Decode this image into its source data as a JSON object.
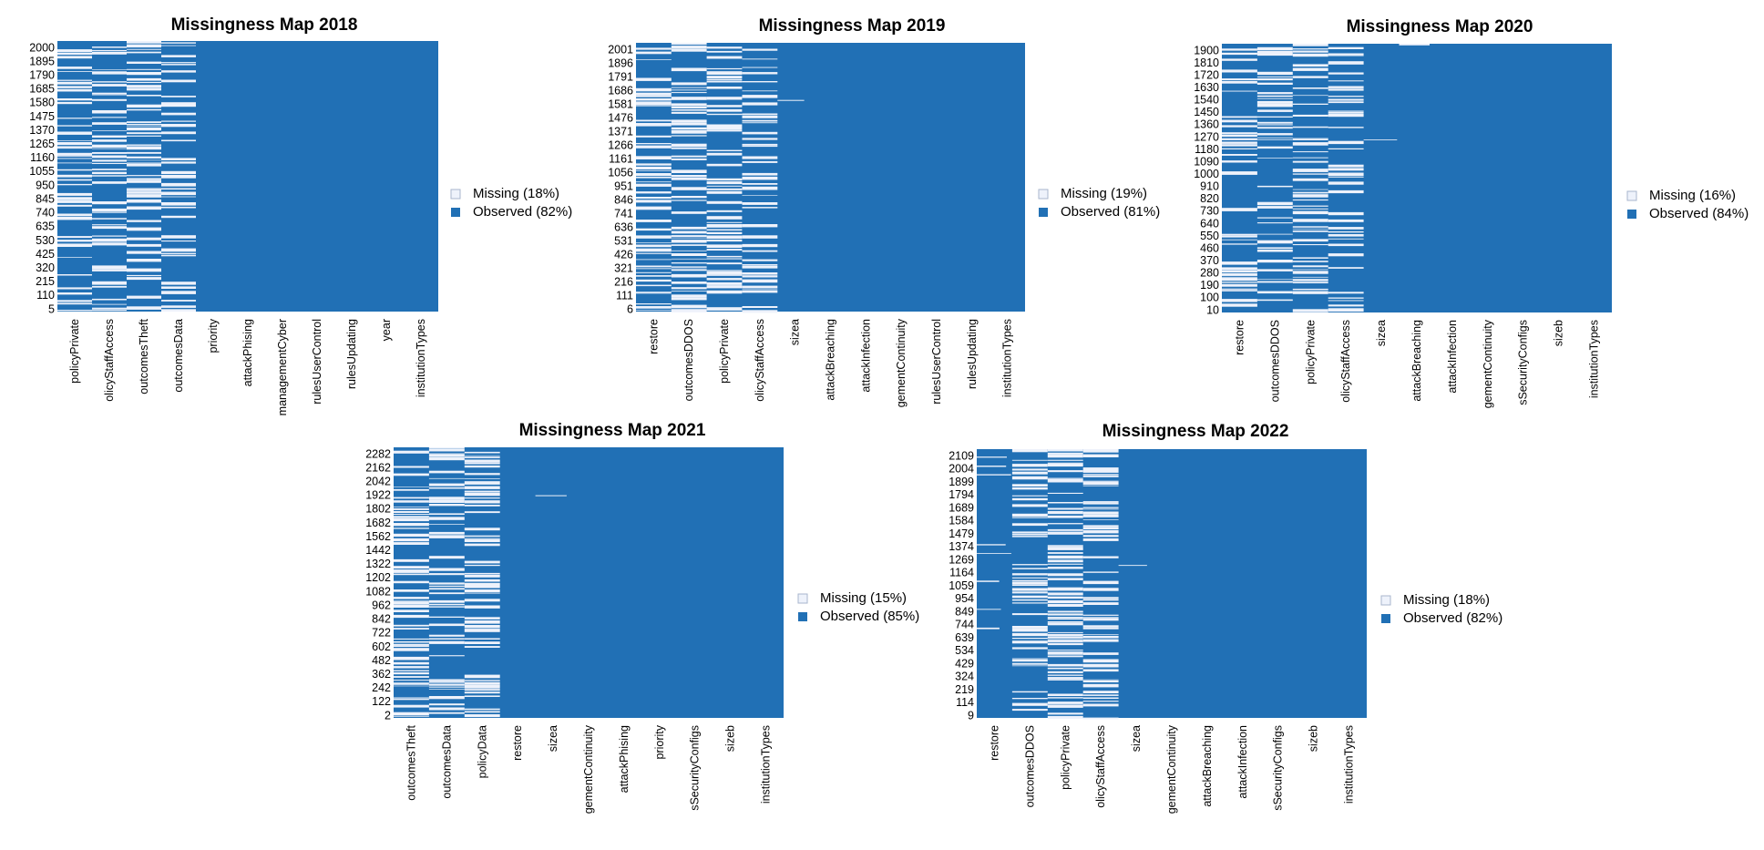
{
  "colors": {
    "missing": "#eef2fb",
    "observed": "#2170b5",
    "missing_border": "#a8b6cc"
  },
  "chart_data": [
    {
      "type": "heatmap",
      "title": "Missingness Map",
      "year": "2018",
      "legend": {
        "placement": "right",
        "missing": "Missing (18%)",
        "observed": "Observed (82%)"
      },
      "ytick_labels": [
        "2000",
        "1895",
        "1790",
        "1685",
        "1580",
        "1475",
        "1370",
        "1265",
        "1160",
        "1055",
        "950",
        "845",
        "740",
        "635",
        "530",
        "425",
        "320",
        "215",
        "110",
        "5"
      ],
      "columns": [
        {
          "name": "policyPrivate",
          "missing_pct": 40
        },
        {
          "name": "policyStaffAccess",
          "missing_pct": 45
        },
        {
          "name": "outcomesTheft",
          "missing_pct": 45
        },
        {
          "name": "outcomesData",
          "missing_pct": 35
        },
        {
          "name": "priority",
          "missing_pct": 2
        },
        {
          "name": "attackPhising",
          "missing_pct": 2
        },
        {
          "name": "managementCyber",
          "missing_pct": 1
        },
        {
          "name": "rulesUserControl",
          "missing_pct": 0
        },
        {
          "name": "rulesUpdating",
          "missing_pct": 0
        },
        {
          "name": "year",
          "missing_pct": 0
        },
        {
          "name": "institutionTypes",
          "missing_pct": 0
        }
      ]
    },
    {
      "type": "heatmap",
      "title": "Missingness Map",
      "year": "2019",
      "legend": {
        "placement": "right",
        "missing": "Missing (19%)",
        "observed": "Observed (81%)"
      },
      "ytick_labels": [
        "2001",
        "1896",
        "1791",
        "1686",
        "1581",
        "1476",
        "1371",
        "1266",
        "1161",
        "1056",
        "951",
        "846",
        "741",
        "636",
        "531",
        "426",
        "321",
        "216",
        "111",
        "6"
      ],
      "columns": [
        {
          "name": "restore",
          "missing_pct": 48
        },
        {
          "name": "outcomesDDOS",
          "missing_pct": 42
        },
        {
          "name": "policyPrivate",
          "missing_pct": 45
        },
        {
          "name": "policyStaffAccess",
          "missing_pct": 38
        },
        {
          "name": "sizea",
          "missing_pct": 4
        },
        {
          "name": "attackBreaching",
          "missing_pct": 2
        },
        {
          "name": "attackInfection",
          "missing_pct": 1
        },
        {
          "name": "managementContinuity",
          "missing_pct": 1
        },
        {
          "name": "rulesUserControl",
          "missing_pct": 1
        },
        {
          "name": "rulesUpdating",
          "missing_pct": 0
        },
        {
          "name": "institutionTypes",
          "missing_pct": 0
        }
      ]
    },
    {
      "type": "heatmap",
      "title": "Missingness Map",
      "year": "2020",
      "legend": {
        "placement": "right",
        "missing": "Missing (16%)",
        "observed": "Observed (84%)"
      },
      "ytick_labels": [
        "1900",
        "1810",
        "1720",
        "1630",
        "1540",
        "1450",
        "1360",
        "1270",
        "1180",
        "1090",
        "1000",
        "910",
        "820",
        "730",
        "640",
        "550",
        "460",
        "370",
        "280",
        "190",
        "100",
        "10"
      ],
      "columns": [
        {
          "name": "restore",
          "missing_pct": 38
        },
        {
          "name": "outcomesDDOS",
          "missing_pct": 40
        },
        {
          "name": "policyPrivate",
          "missing_pct": 42
        },
        {
          "name": "policyStaffAccess",
          "missing_pct": 36
        },
        {
          "name": "sizea",
          "missing_pct": 8
        },
        {
          "name": "attackBreaching",
          "missing_pct": 2
        },
        {
          "name": "attackInfection",
          "missing_pct": 1
        },
        {
          "name": "managementContinuity",
          "missing_pct": 1
        },
        {
          "name": "rulesSecurityConfigs",
          "missing_pct": 1
        },
        {
          "name": "sizeb",
          "missing_pct": 1
        },
        {
          "name": "institutionTypes",
          "missing_pct": 0
        }
      ]
    },
    {
      "type": "heatmap",
      "title": "Missingness Map",
      "year": "2021",
      "legend": {
        "placement": "right",
        "missing": "Missing (15%)",
        "observed": "Observed (85%)"
      },
      "ytick_labels": [
        "2282",
        "2162",
        "2042",
        "1922",
        "1802",
        "1682",
        "1562",
        "1442",
        "1322",
        "1202",
        "1082",
        "962",
        "842",
        "722",
        "602",
        "482",
        "362",
        "242",
        "122",
        "2"
      ],
      "columns": [
        {
          "name": "outcomesTheft",
          "missing_pct": 40
        },
        {
          "name": "outcomesData",
          "missing_pct": 40
        },
        {
          "name": "policyData",
          "missing_pct": 50
        },
        {
          "name": "restore",
          "missing_pct": 4
        },
        {
          "name": "sizea",
          "missing_pct": 3
        },
        {
          "name": "managementContinuity",
          "missing_pct": 2
        },
        {
          "name": "attackPhising",
          "missing_pct": 2
        },
        {
          "name": "priority",
          "missing_pct": 1
        },
        {
          "name": "rulesSecurityConfigs",
          "missing_pct": 0
        },
        {
          "name": "sizeb",
          "missing_pct": 1
        },
        {
          "name": "institutionTypes",
          "missing_pct": 0
        }
      ]
    },
    {
      "type": "heatmap",
      "title": "Missingness Map",
      "year": "2022",
      "legend": {
        "placement": "right",
        "missing": "Missing (18%)",
        "observed": "Observed (82%)"
      },
      "ytick_labels": [
        "2109",
        "2004",
        "1899",
        "1794",
        "1689",
        "1584",
        "1479",
        "1374",
        "1269",
        "1164",
        "1059",
        "954",
        "849",
        "744",
        "639",
        "534",
        "429",
        "324",
        "219",
        "114",
        "9"
      ],
      "columns": [
        {
          "name": "restore",
          "missing_pct": 30
        },
        {
          "name": "outcomesDDOS",
          "missing_pct": 45
        },
        {
          "name": "policyPrivate",
          "missing_pct": 48
        },
        {
          "name": "policyStaffAccess",
          "missing_pct": 40
        },
        {
          "name": "sizea",
          "missing_pct": 5
        },
        {
          "name": "managementContinuity",
          "missing_pct": 3
        },
        {
          "name": "attackBreaching",
          "missing_pct": 2
        },
        {
          "name": "attackInfection",
          "missing_pct": 1
        },
        {
          "name": "rulesSecurityConfigs",
          "missing_pct": 2
        },
        {
          "name": "sizeb",
          "missing_pct": 1
        },
        {
          "name": "institutionTypes",
          "missing_pct": 0
        }
      ]
    }
  ]
}
